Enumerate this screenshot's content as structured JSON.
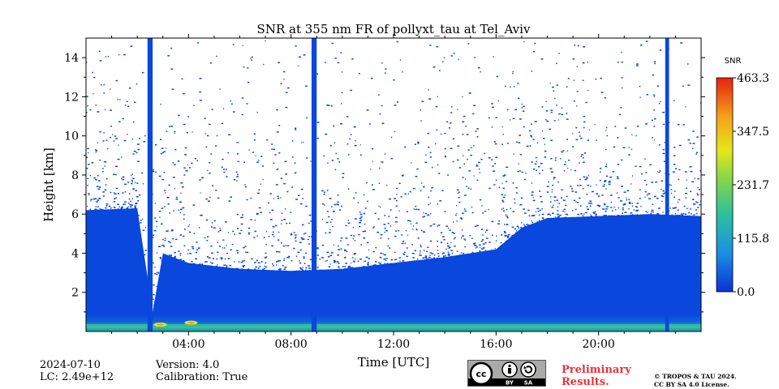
{
  "chart_data": {
    "type": "heatmap",
    "title": "SNR at 355 nm FR of pollyxt_tau at Tel_Aviv",
    "xlabel": "Time [UTC]",
    "ylabel": "Height [km]",
    "xlim": [
      0,
      24
    ],
    "ylim": [
      0,
      15
    ],
    "x_ticks": [
      4,
      8,
      12,
      16,
      20
    ],
    "x_tick_labels": [
      "04:00",
      "08:00",
      "12:00",
      "16:00",
      "20:00"
    ],
    "y_ticks": [
      2,
      4,
      6,
      8,
      10,
      12,
      14
    ],
    "y_tick_labels": [
      "2",
      "4",
      "6",
      "8",
      "10",
      "12",
      "14"
    ],
    "colorbar": {
      "label": "SNR",
      "ticks": [
        0.0,
        115.8,
        231.7,
        347.5,
        463.3
      ],
      "tick_labels": [
        "0.0",
        "115.8",
        "231.7",
        "347.5",
        "463.3"
      ],
      "range": [
        0,
        463.3
      ],
      "colormap": [
        "#0a33d6",
        "#1a8fe0",
        "#2bc0a0",
        "#7fd64a",
        "#e6e61a",
        "#f5a018",
        "#e82010"
      ]
    },
    "signal_top_km": {
      "time_h": [
        0,
        2,
        2.6,
        3,
        4,
        6,
        8,
        10,
        12,
        14,
        16,
        17,
        18,
        20,
        22,
        24
      ],
      "height_km": [
        6.2,
        6.3,
        1.0,
        4.0,
        3.5,
        3.2,
        3.1,
        3.2,
        3.5,
        3.8,
        4.2,
        5.3,
        5.8,
        5.9,
        6.0,
        5.9
      ]
    },
    "high_snr_patches": [
      {
        "time_h": 2.9,
        "height_km": 0.35,
        "snr": 300
      },
      {
        "time_h": 4.1,
        "height_km": 0.45,
        "snr": 240
      }
    ],
    "instrument_off_periods_h": [
      [
        2.4,
        2.6
      ],
      [
        8.8,
        9.0
      ],
      [
        22.6,
        22.75
      ]
    ]
  },
  "footer": {
    "date": "2024-07-10",
    "lc": "LC: 2.49e+12",
    "version": "Version: 4.0",
    "calibration": "Calibration: True",
    "preliminary_line1": "Preliminary",
    "preliminary_line2": "Results.",
    "copyright_line1": "© TROPOS & TAU 2024.",
    "copyright_line2": "CC BY SA 4.0 License."
  },
  "license_badge": {
    "labels": [
      "BY",
      "SA"
    ],
    "icons": [
      "cc-logo-icon",
      "attribution-icon",
      "share-alike-icon"
    ]
  }
}
